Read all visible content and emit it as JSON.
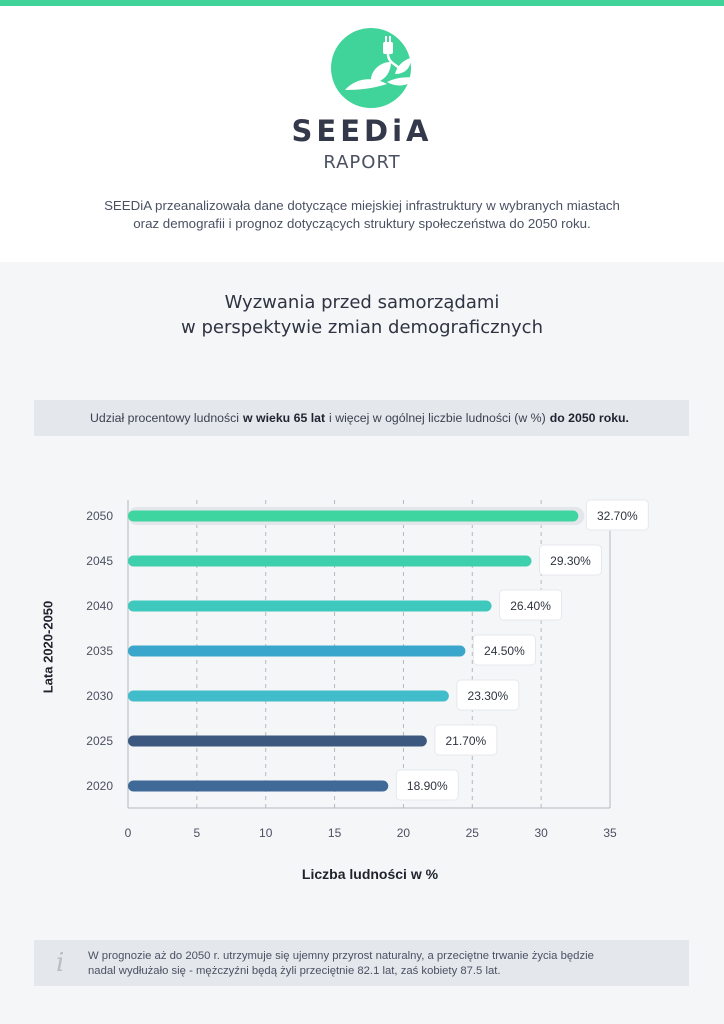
{
  "header": {
    "brand": "SEEDiA",
    "subtitle": "RAPORT",
    "intro_line1": "SEEDiA przeanalizowała dane dotyczące miejskiej infrastruktury w wybranych miastach",
    "intro_line2": "oraz demografii i prognoz dotyczących struktury społeczeństwa do 2050 roku."
  },
  "section": {
    "title_line1": "Wyzwania przed samorządami",
    "title_line2": "w perspektywie zmian demograficznych",
    "band_pre": "Udział procentowy ludności",
    "band_bold1": "w wieku 65 lat",
    "band_mid": "i więcej w ogólnej liczbie ludności (w %)",
    "band_bold2": "do 2050 roku."
  },
  "colors": {
    "accent": "#41d49a",
    "bar_2050": "#3fd5a0",
    "bar_2045": "#3ed0ad",
    "bar_2040": "#3fc8bd",
    "bar_2035": "#3ba6cc",
    "bar_2030": "#41bcca",
    "bar_2025": "#3d587f",
    "bar_2020": "#3f6a98"
  },
  "chart_data": {
    "type": "bar",
    "orientation": "horizontal",
    "categories": [
      "2050",
      "2045",
      "2040",
      "2035",
      "2030",
      "2025",
      "2020"
    ],
    "values": [
      32.7,
      29.3,
      26.4,
      24.5,
      23.3,
      21.7,
      18.9
    ],
    "value_labels": [
      "32.70%",
      "29.30%",
      "26.40%",
      "24.50%",
      "23.30%",
      "21.70%",
      "18.90%"
    ],
    "xlabel": "Liczba ludności w %",
    "ylabel": "Lata 2020-2050",
    "xlim": [
      0,
      35
    ],
    "xticks": [
      "0",
      "5",
      "10",
      "15",
      "20",
      "25",
      "30",
      "35"
    ],
    "grid": "vertical dashed"
  },
  "note": {
    "line1": "W prognozie aż do 2050 r. utrzymuje się ujemny przyrost naturalny, a przeciętne trwanie życia będzie",
    "line2": "nadal wydłużało się - mężczyźni będą żyli przeciętnie 82.1 lat, zaś kobiety 87.5 lat."
  }
}
